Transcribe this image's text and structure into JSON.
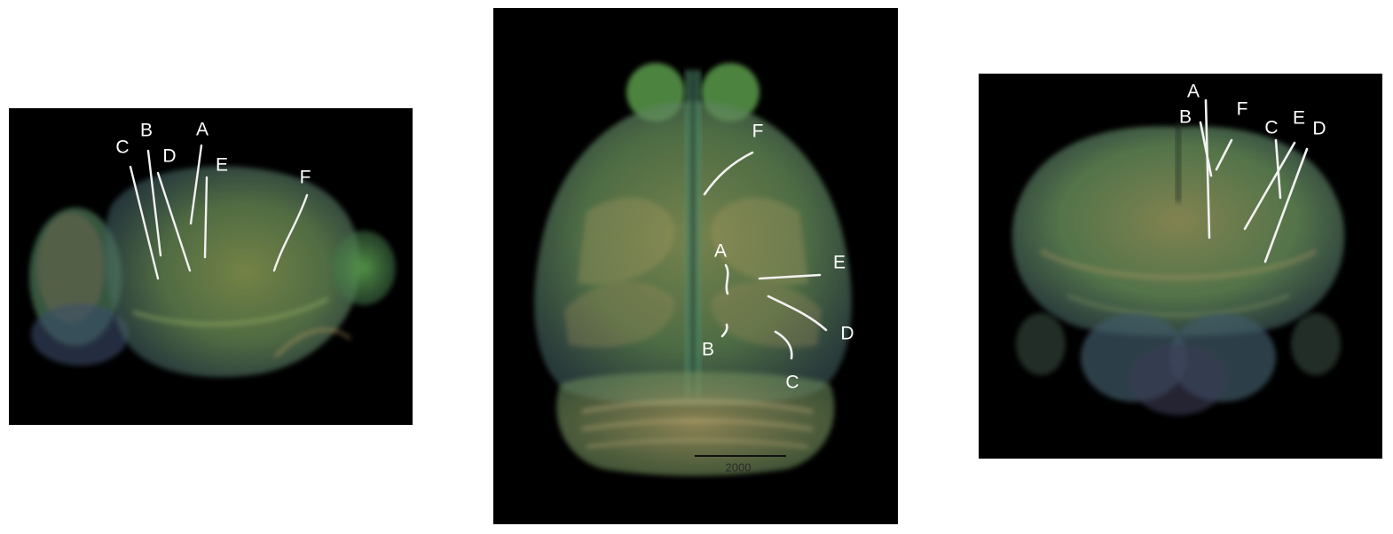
{
  "figure": {
    "panels": [
      {
        "view": "sagittal",
        "probe_labels": {
          "a": "A",
          "b": "B",
          "c": "C",
          "d": "D",
          "e": "E",
          "f": "F"
        }
      },
      {
        "view": "dorsal",
        "probe_labels": {
          "a": "A",
          "b": "B",
          "c": "C",
          "d": "D",
          "e": "E",
          "f": "F"
        },
        "scale_bar": {
          "label": "2000"
        }
      },
      {
        "view": "coronal",
        "probe_labels": {
          "a": "A",
          "b": "B",
          "c": "C",
          "d": "D",
          "e": "E",
          "f": "F"
        }
      }
    ],
    "colors": {
      "background": "#000000",
      "tissue_green": "#6fb05a",
      "tissue_tan": "#b59a6a",
      "probe_track": "#f2f2f2",
      "label_text": "#ffffff"
    }
  }
}
